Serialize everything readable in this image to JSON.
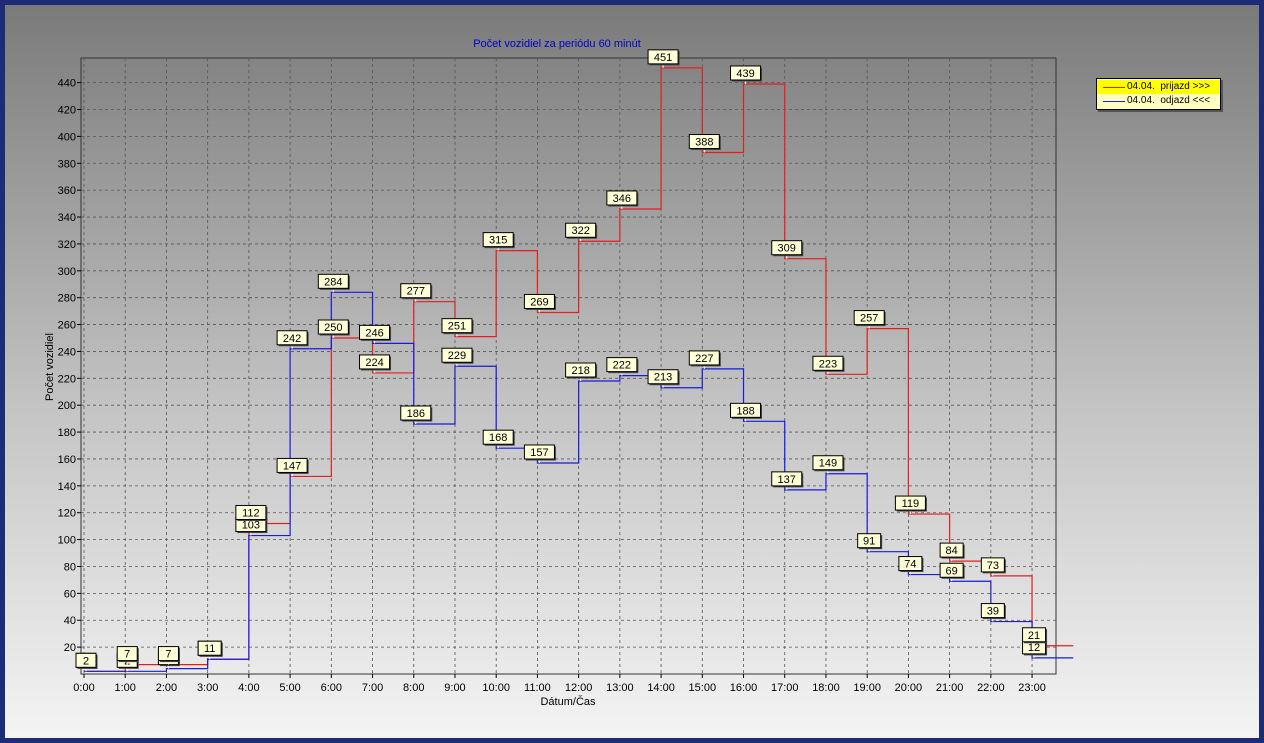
{
  "chart_data": {
    "type": "line",
    "step": true,
    "title": "Počet vozidiel za periódu 60 minút",
    "xlabel": "Dátum/Čas",
    "ylabel": "Počet vozidiel",
    "categories": [
      "0:00",
      "1:00",
      "2:00",
      "3:00",
      "4:00",
      "5:00",
      "6:00",
      "7:00",
      "8:00",
      "9:00",
      "10:00",
      "11:00",
      "12:00",
      "13:00",
      "14:00",
      "15:00",
      "16:00",
      "17:00",
      "18:00",
      "19:00",
      "20:00",
      "21:00",
      "22:00",
      "23:00"
    ],
    "yticks": [
      20,
      40,
      60,
      80,
      100,
      120,
      140,
      160,
      180,
      200,
      220,
      240,
      260,
      280,
      300,
      320,
      340,
      360,
      380,
      400,
      420,
      440
    ],
    "ylim": [
      0,
      455
    ],
    "grid": true,
    "legend_position": "top-right",
    "series": [
      {
        "name": "04.04.  prijazd >>>",
        "color": "#e02020",
        "values": [
          2,
          7,
          7,
          11,
          112,
          147,
          250,
          224,
          277,
          251,
          315,
          269,
          322,
          346,
          451,
          388,
          439,
          309,
          223,
          257,
          119,
          84,
          73,
          21
        ]
      },
      {
        "name": "04.04.  odjazd <<<",
        "color": "#1a1ae0",
        "values": [
          2,
          2,
          4,
          11,
          103,
          242,
          284,
          246,
          186,
          229,
          168,
          157,
          218,
          222,
          213,
          227,
          188,
          137,
          149,
          91,
          74,
          69,
          39,
          12
        ]
      }
    ]
  },
  "colors": {
    "frame": "#1e2c78",
    "title_text": "#0000cc",
    "grid": "#555555",
    "label_box": "#ffffd8",
    "legend_box": "#ffffc0",
    "legend_highlight": "#ffff00"
  }
}
